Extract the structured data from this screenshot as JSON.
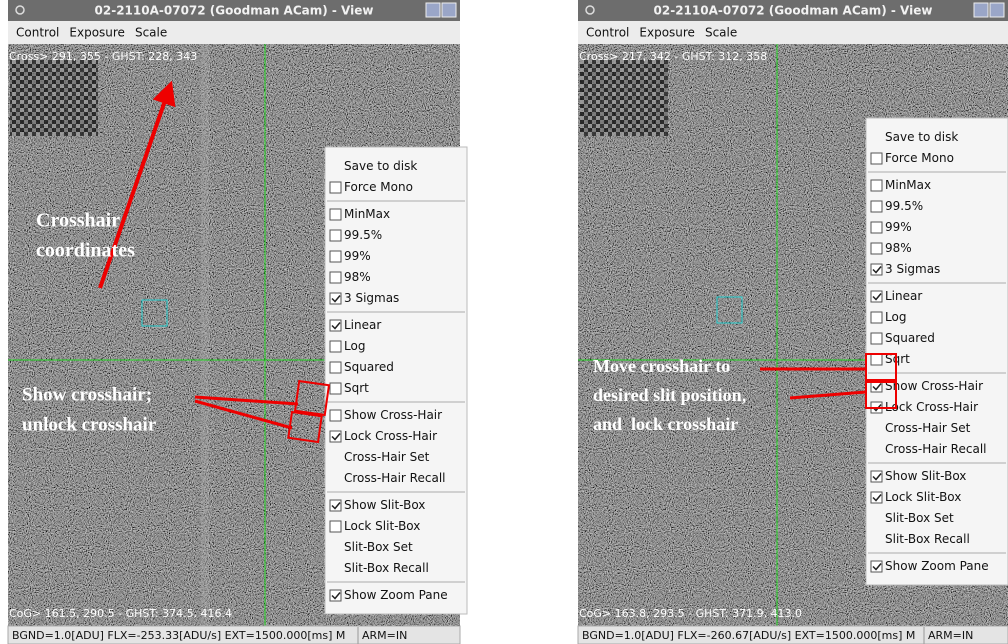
{
  "windows": [
    {
      "title": "02-2110A-07072 (Goodman ACam) - View",
      "menubar": [
        "Control",
        "Exposure",
        "Scale"
      ],
      "overlay_top": "Cross> 291, 355 - GHST: 228, 343",
      "overlay_bottom": "CoG> 161.5, 290.5 - GHST: 374.5, 416.4",
      "status": "BGND=1.0[ADU] FLX=-253.33[ADU/s] EXT=1500.000[ms] M",
      "arm": "ARM=IN",
      "context_menu": [
        [
          {
            "label": "Save to disk"
          },
          {
            "label": "Force Mono",
            "check": "unchecked"
          }
        ],
        [
          {
            "label": "MinMax",
            "check": "unchecked"
          },
          {
            "label": "99.5%",
            "check": "unchecked"
          },
          {
            "label": "99%",
            "check": "unchecked"
          },
          {
            "label": "98%",
            "check": "unchecked"
          },
          {
            "label": "3 Sigmas",
            "check": "checked"
          }
        ],
        [
          {
            "label": "Linear",
            "check": "checked"
          },
          {
            "label": "Log",
            "check": "unchecked"
          },
          {
            "label": "Squared",
            "check": "unchecked"
          },
          {
            "label": "Sqrt",
            "check": "unchecked"
          }
        ],
        [
          {
            "label": "Show Cross-Hair",
            "check": "unchecked"
          },
          {
            "label": "Lock Cross-Hair",
            "check": "checked"
          },
          {
            "label": "Cross-Hair Set"
          },
          {
            "label": "Cross-Hair Recall"
          }
        ],
        [
          {
            "label": "Show Slit-Box",
            "check": "checked"
          },
          {
            "label": "Lock Slit-Box",
            "check": "unchecked"
          },
          {
            "label": "Slit-Box Set"
          },
          {
            "label": "Slit-Box Recall"
          }
        ],
        [
          {
            "label": "Show Zoom Pane",
            "check": "checked"
          }
        ]
      ],
      "annotations": [
        [
          "Crosshair",
          "coordinates"
        ],
        [
          "Show crosshair;",
          "unlock crosshair"
        ]
      ]
    },
    {
      "title": "02-2110A-07072 (Goodman ACam) - View",
      "menubar": [
        "Control",
        "Exposure",
        "Scale"
      ],
      "overlay_top": "Cross> 217, 342 - GHST: 312, 358",
      "overlay_bottom": "CoG> 163.8, 293.5 - GHST: 371.9, 413.0",
      "status": "BGND=1.0[ADU] FLX=-260.67[ADU/s] EXT=1500.000[ms] M",
      "arm": "ARM=IN",
      "context_menu": [
        [
          {
            "label": "Save to disk"
          },
          {
            "label": "Force Mono",
            "check": "unchecked"
          }
        ],
        [
          {
            "label": "MinMax",
            "check": "unchecked"
          },
          {
            "label": "99.5%",
            "check": "unchecked"
          },
          {
            "label": "99%",
            "check": "unchecked"
          },
          {
            "label": "98%",
            "check": "unchecked"
          },
          {
            "label": "3 Sigmas",
            "check": "checked"
          }
        ],
        [
          {
            "label": "Linear",
            "check": "checked"
          },
          {
            "label": "Log",
            "check": "unchecked"
          },
          {
            "label": "Squared",
            "check": "unchecked"
          },
          {
            "label": "Sqrt",
            "check": "unchecked"
          }
        ],
        [
          {
            "label": "Show Cross-Hair",
            "check": "checked"
          },
          {
            "label": "Lock Cross-Hair",
            "check": "checked"
          },
          {
            "label": "Cross-Hair Set"
          },
          {
            "label": "Cross-Hair Recall"
          }
        ],
        [
          {
            "label": "Show Slit-Box",
            "check": "checked"
          },
          {
            "label": "Lock Slit-Box",
            "check": "checked"
          },
          {
            "label": "Slit-Box Set"
          },
          {
            "label": "Slit-Box Recall"
          }
        ],
        [
          {
            "label": "Show Zoom Pane",
            "check": "checked"
          }
        ]
      ],
      "annotations": [
        [
          "Move crosshair to",
          "desired slit position,",
          "and  lock crosshair"
        ]
      ]
    }
  ]
}
